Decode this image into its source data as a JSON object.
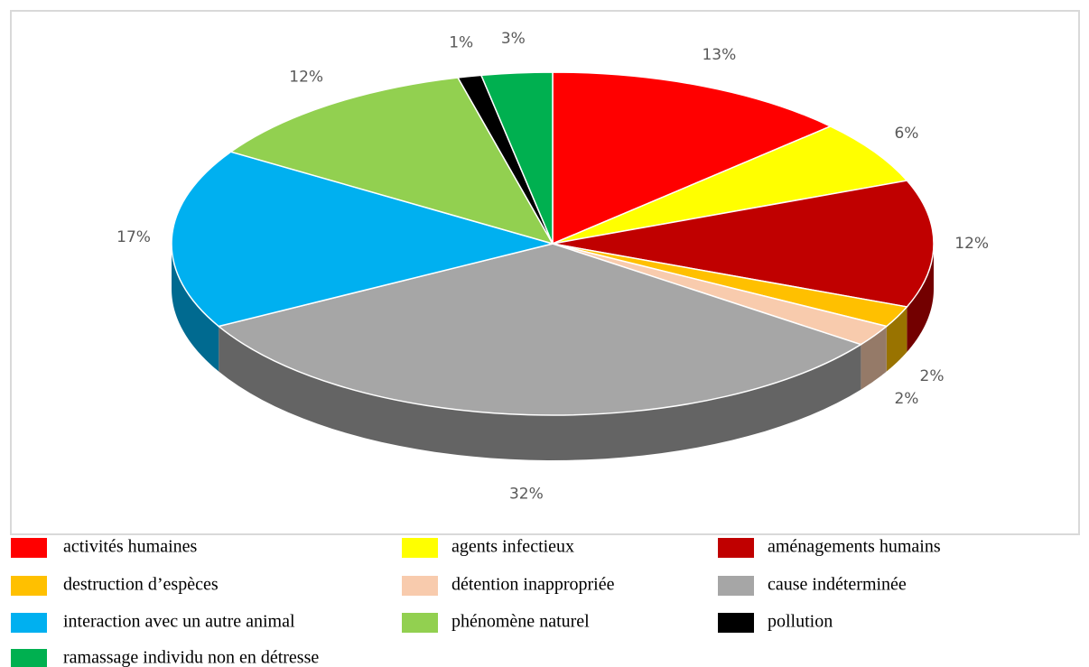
{
  "chart_data": {
    "type": "pie3d",
    "categories": [
      "activités humaines",
      "agents infectieux",
      "aménagements humains",
      "destruction d’espèces",
      "détention inappropriée",
      "cause indéterminée",
      "interaction avec un autre animal",
      "phénomène naturel",
      "pollution",
      "ramassage individu non en détresse"
    ],
    "values": [
      13,
      6,
      12,
      2,
      2,
      32,
      17,
      12,
      1,
      3
    ],
    "value_labels": [
      "13%",
      "6%",
      "12%",
      "2%",
      "2%",
      "32%",
      "17%",
      "12%",
      "1%",
      "3%"
    ],
    "colors": [
      "#ff0000",
      "#ffff00",
      "#c00000",
      "#ffc000",
      "#f8cbad",
      "#a6a6a6",
      "#00b0f0",
      "#92d050",
      "#000000",
      "#00b050"
    ],
    "legend": "bottom"
  }
}
